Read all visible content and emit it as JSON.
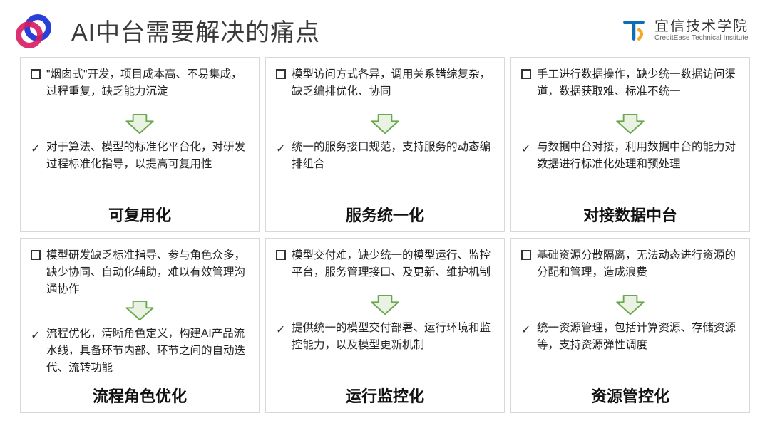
{
  "title": "AI中台需要解决的痛点",
  "brand": {
    "cn": "宜信技术学院",
    "en": "CreditEase Technical Institute"
  },
  "arrow": {
    "stroke": "#6aa84f",
    "fill": "#eaf3e3",
    "stroke_width": 2
  },
  "cells": [
    {
      "problem": "\"烟囱式\"开发，项目成本高、不易集成，过程重复，缺乏能力沉淀",
      "solution": "对于算法、模型的标准化平台化，对研发过程标准化指导，以提高可复用性",
      "heading": "可复用化"
    },
    {
      "problem": "模型访问方式各异，调用关系错综复杂，缺乏编排优化、协同",
      "solution": "统一的服务接口规范，支持服务的动态编排组合",
      "heading": "服务统一化"
    },
    {
      "problem": "手工进行数据操作，缺少统一数据访问渠道，数据获取难、标准不统一",
      "solution": "与数据中台对接，利用数据中台的能力对数据进行标准化处理和预处理",
      "heading": "对接数据中台"
    },
    {
      "problem": "模型研发缺乏标准指导、参与角色众多，缺少协同、自动化辅助，难以有效管理沟通协作",
      "solution": "流程优化，清晰角色定义，构建AI产品流水线，具备环节内部、环节之间的自动迭代、流转功能",
      "heading": "流程角色优化"
    },
    {
      "problem": "模型交付难，缺少统一的模型运行、监控平台，服务管理接口、及更新、维护机制",
      "solution": "提供统一的模型交付部署、运行环境和监控能力，以及模型更新机制",
      "heading": "运行监控化"
    },
    {
      "problem": "基础资源分散隔离，无法动态进行资源的分配和管理，造成浪费",
      "solution": "统一资源管理，包括计算资源、存储资源等，支持资源弹性调度",
      "heading": "资源管控化"
    }
  ]
}
